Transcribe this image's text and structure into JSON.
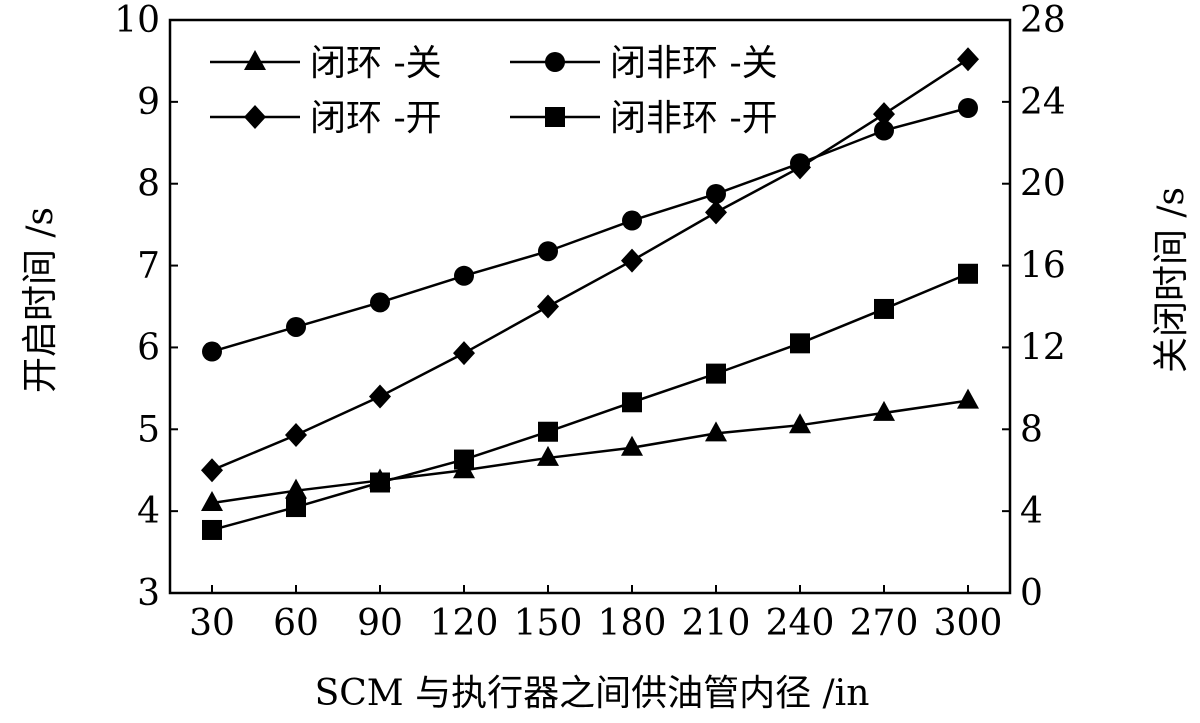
{
  "chart_data": {
    "type": "line",
    "xlabel": "SCM 与执行器之间供油管内径 /in",
    "ylabel_left": "开启时间 /s",
    "ylabel_right": "关闭时间 /s",
    "x": [
      30,
      60,
      90,
      120,
      150,
      180,
      210,
      240,
      270,
      300
    ],
    "x_ticks": [
      "30",
      "60",
      "90",
      "120",
      "150",
      "180",
      "210",
      "240",
      "270",
      "300"
    ],
    "ylim_left": [
      3,
      10
    ],
    "yticks_left": [
      "3",
      "4",
      "5",
      "6",
      "7",
      "8",
      "9",
      "10"
    ],
    "ylim_right": [
      0,
      28
    ],
    "yticks_right": [
      "0",
      "4",
      "8",
      "12",
      "16",
      "20",
      "24",
      "28"
    ],
    "legend_position": "top-left",
    "series": [
      {
        "name": "闭环 -关",
        "axis": "right",
        "marker": "triangle",
        "values": [
          4.4,
          5.0,
          5.5,
          6.0,
          6.6,
          7.1,
          7.8,
          8.2,
          8.8,
          9.4
        ]
      },
      {
        "name": "闭非环 -关",
        "axis": "right",
        "marker": "circle",
        "values": [
          11.8,
          13.0,
          14.2,
          15.5,
          16.7,
          18.2,
          19.5,
          21.0,
          22.6,
          23.7
        ]
      },
      {
        "name": "闭环 -开",
        "axis": "left",
        "marker": "diamond",
        "values": [
          4.5,
          4.93,
          5.4,
          5.93,
          6.5,
          7.06,
          7.65,
          8.2,
          8.85,
          9.52
        ]
      },
      {
        "name": "闭非环 -开",
        "axis": "left",
        "marker": "square",
        "values": [
          3.77,
          4.05,
          4.35,
          4.63,
          4.97,
          5.33,
          5.68,
          6.05,
          6.47,
          6.9
        ]
      }
    ]
  }
}
